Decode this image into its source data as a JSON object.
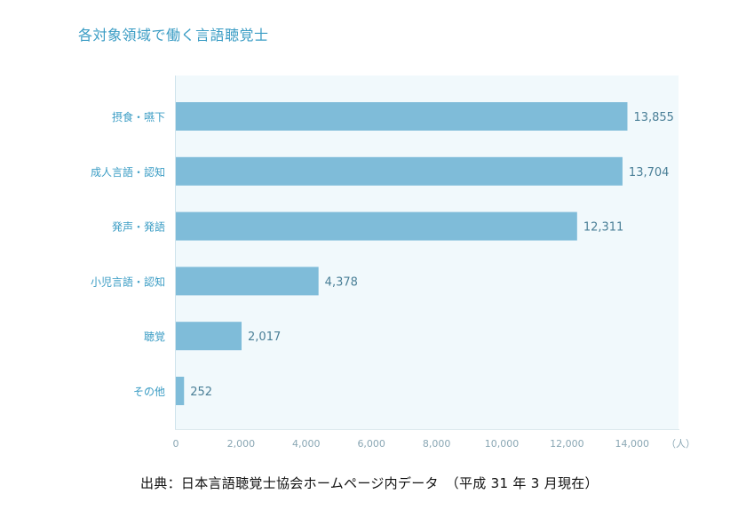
{
  "title": "各対象領域で働く言語聴覚士",
  "source": "出典：日本言語聴覚士協会ホームページ内データ　（平成 31 年 3 月現在）",
  "colors": {
    "bar": "#7fbcd9",
    "label": "#3a9cc4",
    "value": "#4a7f97",
    "tick": "#8aa7b4",
    "plot_bg": "#f1f9fc"
  },
  "chart_data": {
    "type": "bar",
    "orientation": "horizontal",
    "title": "各対象領域で働く言語聴覚士",
    "categories": [
      "摂食・嚥下",
      "成人言語・認知",
      "発声・発語",
      "小児言語・認知",
      "聴覚",
      "その他"
    ],
    "values": [
      13855,
      13704,
      12311,
      4378,
      2017,
      252
    ],
    "value_labels": [
      "13,855",
      "13,704",
      "12,311",
      "4,378",
      "2,017",
      "252"
    ],
    "x_ticks": [
      "0",
      "2,000",
      "4,000",
      "6,000",
      "8,000",
      "10,000",
      "12,000",
      "14,000"
    ],
    "x_unit": "（人）",
    "xlim": [
      0,
      15500
    ],
    "grid": false
  }
}
